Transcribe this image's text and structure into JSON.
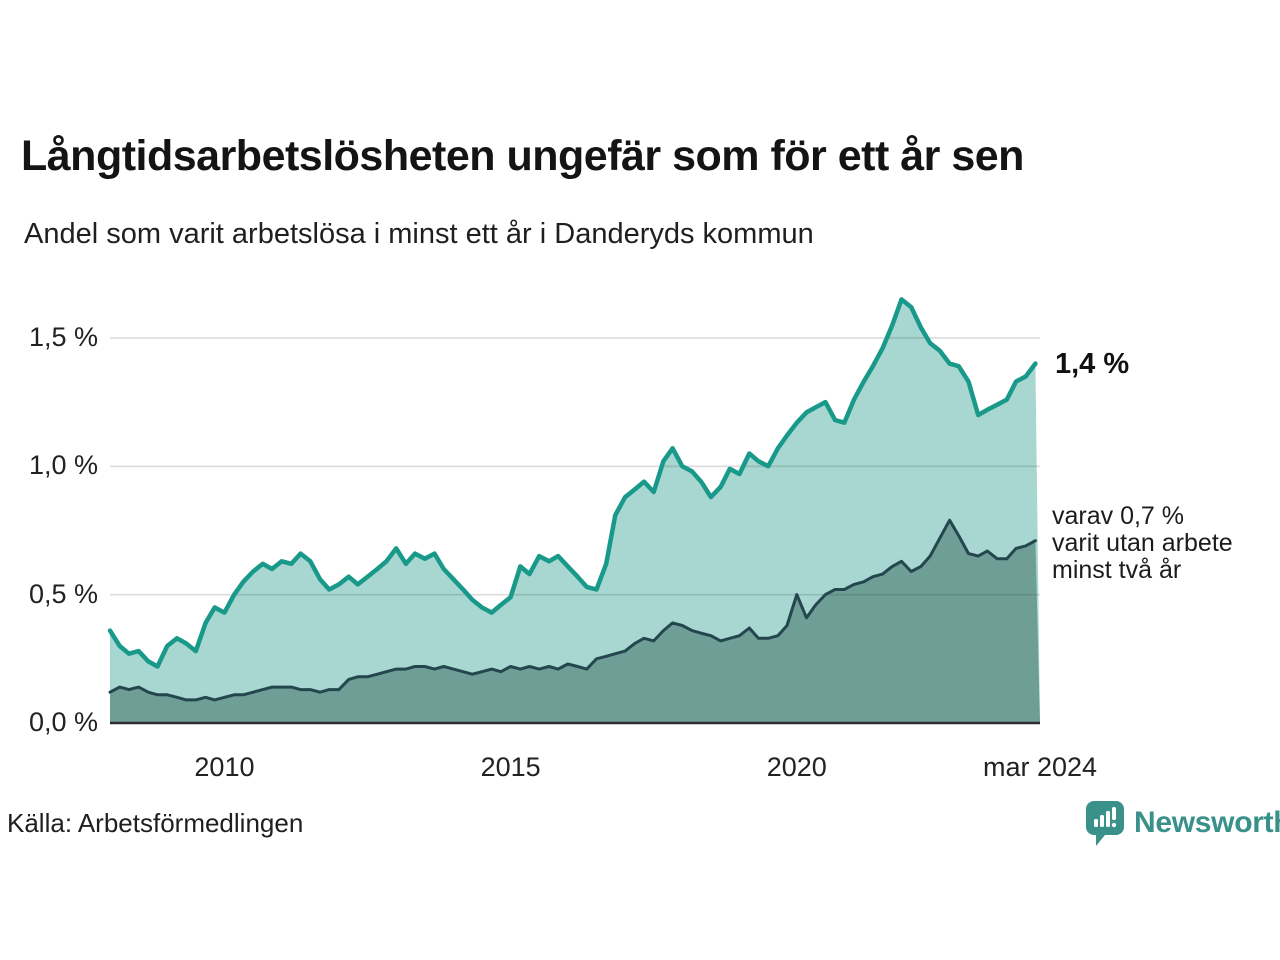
{
  "header": {
    "title": "Långtidsarbetslösheten ungefär som för ett år sen",
    "subtitle": "Andel som varit arbetslösa i minst ett år i Danderyds kommun"
  },
  "chart_data": {
    "type": "area",
    "title": "Långtidsarbetslösheten ungefär som för ett år sen",
    "subtitle": "Andel som varit arbetslösa i minst ett år i Danderyds kommun",
    "x_range": [
      2008,
      2024.25
    ],
    "ylim": [
      0,
      1.7
    ],
    "grid": true,
    "y_ticks": [
      {
        "value": 0.0,
        "label": "0,0 %"
      },
      {
        "value": 0.5,
        "label": "0,5 %"
      },
      {
        "value": 1.0,
        "label": "1,0 %"
      },
      {
        "value": 1.5,
        "label": "1,5 %"
      }
    ],
    "x_ticks": [
      {
        "value": 2010,
        "label": "2010"
      },
      {
        "value": 2015,
        "label": "2015"
      },
      {
        "value": 2020,
        "label": "2020"
      },
      {
        "value": 2024.25,
        "label": "mar 2024"
      }
    ],
    "colors": {
      "line_total": "#19998a",
      "fill_total": "#a7d7d0",
      "line_two_years": "#24464e",
      "fill_two_years": "#6f9e96",
      "gridline": "rgba(60,60,60,0.18)",
      "baseline": "#2d2d2d"
    },
    "series": [
      {
        "name": "arbetslösa minst ett år",
        "last_value_label": "1,4 %",
        "points": [
          [
            2008.0,
            0.36
          ],
          [
            2008.17,
            0.3
          ],
          [
            2008.33,
            0.27
          ],
          [
            2008.5,
            0.28
          ],
          [
            2008.67,
            0.24
          ],
          [
            2008.83,
            0.22
          ],
          [
            2009.0,
            0.3
          ],
          [
            2009.17,
            0.33
          ],
          [
            2009.33,
            0.31
          ],
          [
            2009.5,
            0.28
          ],
          [
            2009.67,
            0.39
          ],
          [
            2009.83,
            0.45
          ],
          [
            2010.0,
            0.43
          ],
          [
            2010.17,
            0.5
          ],
          [
            2010.33,
            0.55
          ],
          [
            2010.5,
            0.59
          ],
          [
            2010.67,
            0.62
          ],
          [
            2010.83,
            0.6
          ],
          [
            2011.0,
            0.63
          ],
          [
            2011.17,
            0.62
          ],
          [
            2011.33,
            0.66
          ],
          [
            2011.5,
            0.63
          ],
          [
            2011.67,
            0.56
          ],
          [
            2011.83,
            0.52
          ],
          [
            2012.0,
            0.54
          ],
          [
            2012.17,
            0.57
          ],
          [
            2012.33,
            0.54
          ],
          [
            2012.5,
            0.57
          ],
          [
            2012.67,
            0.6
          ],
          [
            2012.83,
            0.63
          ],
          [
            2013.0,
            0.68
          ],
          [
            2013.17,
            0.62
          ],
          [
            2013.33,
            0.66
          ],
          [
            2013.5,
            0.64
          ],
          [
            2013.67,
            0.66
          ],
          [
            2013.83,
            0.6
          ],
          [
            2014.0,
            0.56
          ],
          [
            2014.17,
            0.52
          ],
          [
            2014.33,
            0.48
          ],
          [
            2014.5,
            0.45
          ],
          [
            2014.67,
            0.43
          ],
          [
            2014.83,
            0.46
          ],
          [
            2015.0,
            0.49
          ],
          [
            2015.17,
            0.61
          ],
          [
            2015.33,
            0.58
          ],
          [
            2015.5,
            0.65
          ],
          [
            2015.67,
            0.63
          ],
          [
            2015.83,
            0.65
          ],
          [
            2016.0,
            0.61
          ],
          [
            2016.17,
            0.57
          ],
          [
            2016.33,
            0.53
          ],
          [
            2016.5,
            0.52
          ],
          [
            2016.67,
            0.62
          ],
          [
            2016.83,
            0.81
          ],
          [
            2017.0,
            0.88
          ],
          [
            2017.17,
            0.91
          ],
          [
            2017.33,
            0.94
          ],
          [
            2017.5,
            0.9
          ],
          [
            2017.67,
            1.02
          ],
          [
            2017.83,
            1.07
          ],
          [
            2018.0,
            1.0
          ],
          [
            2018.17,
            0.98
          ],
          [
            2018.33,
            0.94
          ],
          [
            2018.5,
            0.88
          ],
          [
            2018.67,
            0.92
          ],
          [
            2018.83,
            0.99
          ],
          [
            2019.0,
            0.97
          ],
          [
            2019.17,
            1.05
          ],
          [
            2019.33,
            1.02
          ],
          [
            2019.5,
            1.0
          ],
          [
            2019.67,
            1.07
          ],
          [
            2019.83,
            1.12
          ],
          [
            2020.0,
            1.17
          ],
          [
            2020.17,
            1.21
          ],
          [
            2020.33,
            1.23
          ],
          [
            2020.5,
            1.25
          ],
          [
            2020.67,
            1.18
          ],
          [
            2020.83,
            1.17
          ],
          [
            2021.0,
            1.26
          ],
          [
            2021.17,
            1.33
          ],
          [
            2021.33,
            1.39
          ],
          [
            2021.5,
            1.46
          ],
          [
            2021.67,
            1.55
          ],
          [
            2021.83,
            1.65
          ],
          [
            2022.0,
            1.62
          ],
          [
            2022.17,
            1.54
          ],
          [
            2022.33,
            1.48
          ],
          [
            2022.5,
            1.45
          ],
          [
            2022.67,
            1.4
          ],
          [
            2022.83,
            1.39
          ],
          [
            2023.0,
            1.33
          ],
          [
            2023.17,
            1.2
          ],
          [
            2023.33,
            1.22
          ],
          [
            2023.5,
            1.24
          ],
          [
            2023.67,
            1.26
          ],
          [
            2023.83,
            1.33
          ],
          [
            2024.0,
            1.35
          ],
          [
            2024.17,
            1.4
          ]
        ]
      },
      {
        "name": "utan arbete minst två år",
        "last_value_label": "0,7 %",
        "points": [
          [
            2008.0,
            0.12
          ],
          [
            2008.17,
            0.14
          ],
          [
            2008.33,
            0.13
          ],
          [
            2008.5,
            0.14
          ],
          [
            2008.67,
            0.12
          ],
          [
            2008.83,
            0.11
          ],
          [
            2009.0,
            0.11
          ],
          [
            2009.17,
            0.1
          ],
          [
            2009.33,
            0.09
          ],
          [
            2009.5,
            0.09
          ],
          [
            2009.67,
            0.1
          ],
          [
            2009.83,
            0.09
          ],
          [
            2010.0,
            0.1
          ],
          [
            2010.17,
            0.11
          ],
          [
            2010.33,
            0.11
          ],
          [
            2010.5,
            0.12
          ],
          [
            2010.67,
            0.13
          ],
          [
            2010.83,
            0.14
          ],
          [
            2011.0,
            0.14
          ],
          [
            2011.17,
            0.14
          ],
          [
            2011.33,
            0.13
          ],
          [
            2011.5,
            0.13
          ],
          [
            2011.67,
            0.12
          ],
          [
            2011.83,
            0.13
          ],
          [
            2012.0,
            0.13
          ],
          [
            2012.17,
            0.17
          ],
          [
            2012.33,
            0.18
          ],
          [
            2012.5,
            0.18
          ],
          [
            2012.67,
            0.19
          ],
          [
            2012.83,
            0.2
          ],
          [
            2013.0,
            0.21
          ],
          [
            2013.17,
            0.21
          ],
          [
            2013.33,
            0.22
          ],
          [
            2013.5,
            0.22
          ],
          [
            2013.67,
            0.21
          ],
          [
            2013.83,
            0.22
          ],
          [
            2014.0,
            0.21
          ],
          [
            2014.17,
            0.2
          ],
          [
            2014.33,
            0.19
          ],
          [
            2014.5,
            0.2
          ],
          [
            2014.67,
            0.21
          ],
          [
            2014.83,
            0.2
          ],
          [
            2015.0,
            0.22
          ],
          [
            2015.17,
            0.21
          ],
          [
            2015.33,
            0.22
          ],
          [
            2015.5,
            0.21
          ],
          [
            2015.67,
            0.22
          ],
          [
            2015.83,
            0.21
          ],
          [
            2016.0,
            0.23
          ],
          [
            2016.17,
            0.22
          ],
          [
            2016.33,
            0.21
          ],
          [
            2016.5,
            0.25
          ],
          [
            2016.67,
            0.26
          ],
          [
            2016.83,
            0.27
          ],
          [
            2017.0,
            0.28
          ],
          [
            2017.17,
            0.31
          ],
          [
            2017.33,
            0.33
          ],
          [
            2017.5,
            0.32
          ],
          [
            2017.67,
            0.36
          ],
          [
            2017.83,
            0.39
          ],
          [
            2018.0,
            0.38
          ],
          [
            2018.17,
            0.36
          ],
          [
            2018.33,
            0.35
          ],
          [
            2018.5,
            0.34
          ],
          [
            2018.67,
            0.32
          ],
          [
            2018.83,
            0.33
          ],
          [
            2019.0,
            0.34
          ],
          [
            2019.17,
            0.37
          ],
          [
            2019.33,
            0.33
          ],
          [
            2019.5,
            0.33
          ],
          [
            2019.67,
            0.34
          ],
          [
            2019.83,
            0.38
          ],
          [
            2020.0,
            0.5
          ],
          [
            2020.17,
            0.41
          ],
          [
            2020.33,
            0.46
          ],
          [
            2020.5,
            0.5
          ],
          [
            2020.67,
            0.52
          ],
          [
            2020.83,
            0.52
          ],
          [
            2021.0,
            0.54
          ],
          [
            2021.17,
            0.55
          ],
          [
            2021.33,
            0.57
          ],
          [
            2021.5,
            0.58
          ],
          [
            2021.67,
            0.61
          ],
          [
            2021.83,
            0.63
          ],
          [
            2022.0,
            0.59
          ],
          [
            2022.17,
            0.61
          ],
          [
            2022.33,
            0.65
          ],
          [
            2022.5,
            0.72
          ],
          [
            2022.67,
            0.79
          ],
          [
            2022.83,
            0.73
          ],
          [
            2023.0,
            0.66
          ],
          [
            2023.17,
            0.65
          ],
          [
            2023.33,
            0.67
          ],
          [
            2023.5,
            0.64
          ],
          [
            2023.67,
            0.64
          ],
          [
            2023.83,
            0.68
          ],
          [
            2024.0,
            0.69
          ],
          [
            2024.17,
            0.71
          ]
        ]
      }
    ],
    "annotations": {
      "latest_total": "1,4 %",
      "secondary": "varav 0,7 %\nvarit utan arbete\nminst två år"
    },
    "legend_position": "none"
  },
  "footer": {
    "source": "Källa: Arbetsförmedlingen",
    "brand": "Newsworthy",
    "brand_color": "#39918a"
  }
}
